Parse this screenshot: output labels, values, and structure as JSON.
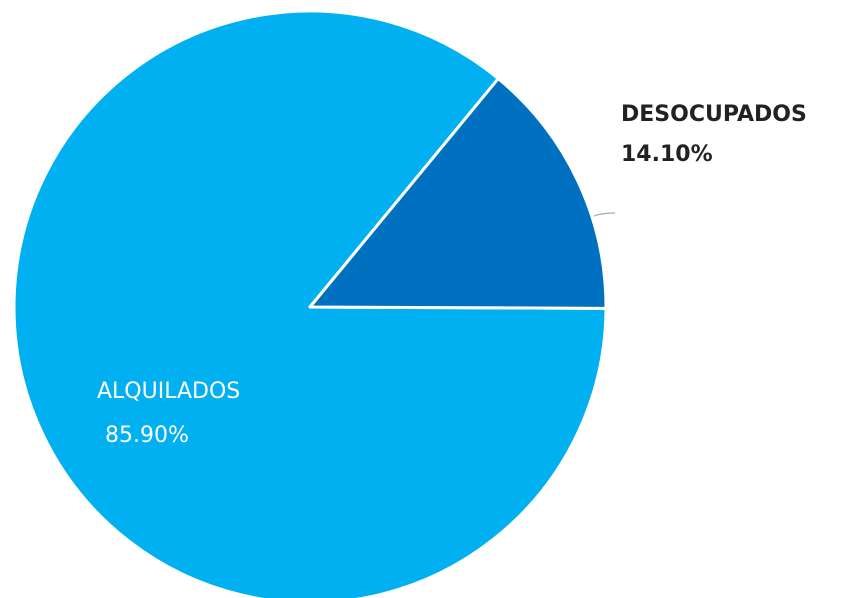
{
  "chart_data": {
    "type": "pie",
    "categories": [
      "ALQUILADOS",
      "DESOCUPADOS"
    ],
    "values": [
      85.9,
      14.1
    ],
    "value_labels": [
      "85.90%",
      "14.10%"
    ],
    "colors": [
      "#00b0f0",
      "#0070c0"
    ],
    "title": "",
    "legend": "none"
  }
}
